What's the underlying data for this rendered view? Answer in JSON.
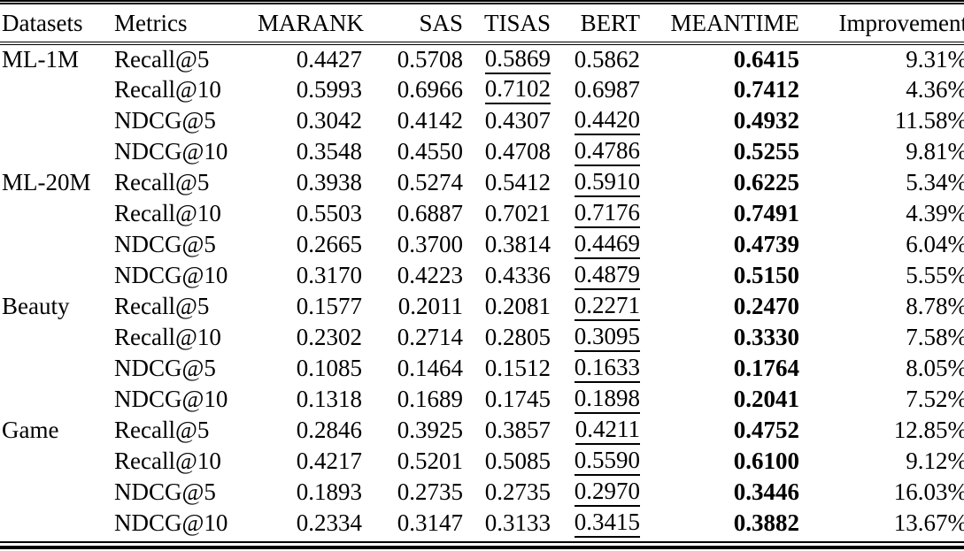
{
  "colors": {
    "text": "#000000",
    "background": "#ffffff",
    "rule": "#000000"
  },
  "table": {
    "columns": [
      "Datasets",
      "Metrics",
      "MARANK",
      "SAS",
      "TISAS",
      "BERT",
      "MEANTIME",
      "Improvement"
    ],
    "value_columns": [
      "MARANK",
      "SAS",
      "TISAS",
      "BERT",
      "MEANTIME",
      "Improvement"
    ],
    "style_legend": {
      "bold": "best result (MEANTIME column)",
      "underline": "second-best result"
    },
    "rows": [
      {
        "dataset": "ML-1M",
        "metric": "Recall@5",
        "values": [
          "0.4427",
          "0.5708",
          "0.5869",
          "0.5862",
          "0.6415",
          "9.31%"
        ],
        "underline": 2,
        "bold": 4
      },
      {
        "dataset": "",
        "metric": "Recall@10",
        "values": [
          "0.5993",
          "0.6966",
          "0.7102",
          "0.6987",
          "0.7412",
          "4.36%"
        ],
        "underline": 2,
        "bold": 4
      },
      {
        "dataset": "",
        "metric": "NDCG@5",
        "values": [
          "0.3042",
          "0.4142",
          "0.4307",
          "0.4420",
          "0.4932",
          "11.58%"
        ],
        "underline": 3,
        "bold": 4
      },
      {
        "dataset": "",
        "metric": "NDCG@10",
        "values": [
          "0.3548",
          "0.4550",
          "0.4708",
          "0.4786",
          "0.5255",
          "9.81%"
        ],
        "underline": 3,
        "bold": 4
      },
      {
        "dataset": "ML-20M",
        "metric": "Recall@5",
        "values": [
          "0.3938",
          "0.5274",
          "0.5412",
          "0.5910",
          "0.6225",
          "5.34%"
        ],
        "underline": 3,
        "bold": 4
      },
      {
        "dataset": "",
        "metric": "Recall@10",
        "values": [
          "0.5503",
          "0.6887",
          "0.7021",
          "0.7176",
          "0.7491",
          "4.39%"
        ],
        "underline": 3,
        "bold": 4
      },
      {
        "dataset": "",
        "metric": "NDCG@5",
        "values": [
          "0.2665",
          "0.3700",
          "0.3814",
          "0.4469",
          "0.4739",
          "6.04%"
        ],
        "underline": 3,
        "bold": 4
      },
      {
        "dataset": "",
        "metric": "NDCG@10",
        "values": [
          "0.3170",
          "0.4223",
          "0.4336",
          "0.4879",
          "0.5150",
          "5.55%"
        ],
        "underline": 3,
        "bold": 4
      },
      {
        "dataset": "Beauty",
        "metric": "Recall@5",
        "values": [
          "0.1577",
          "0.2011",
          "0.2081",
          "0.2271",
          "0.2470",
          "8.78%"
        ],
        "underline": 3,
        "bold": 4
      },
      {
        "dataset": "",
        "metric": "Recall@10",
        "values": [
          "0.2302",
          "0.2714",
          "0.2805",
          "0.3095",
          "0.3330",
          "7.58%"
        ],
        "underline": 3,
        "bold": 4
      },
      {
        "dataset": "",
        "metric": "NDCG@5",
        "values": [
          "0.1085",
          "0.1464",
          "0.1512",
          "0.1633",
          "0.1764",
          "8.05%"
        ],
        "underline": 3,
        "bold": 4
      },
      {
        "dataset": "",
        "metric": "NDCG@10",
        "values": [
          "0.1318",
          "0.1689",
          "0.1745",
          "0.1898",
          "0.2041",
          "7.52%"
        ],
        "underline": 3,
        "bold": 4
      },
      {
        "dataset": "Game",
        "metric": "Recall@5",
        "values": [
          "0.2846",
          "0.3925",
          "0.3857",
          "0.4211",
          "0.4752",
          "12.85%"
        ],
        "underline": 3,
        "bold": 4
      },
      {
        "dataset": "",
        "metric": "Recall@10",
        "values": [
          "0.4217",
          "0.5201",
          "0.5085",
          "0.5590",
          "0.6100",
          "9.12%"
        ],
        "underline": 3,
        "bold": 4
      },
      {
        "dataset": "",
        "metric": "NDCG@5",
        "values": [
          "0.1893",
          "0.2735",
          "0.2735",
          "0.2970",
          "0.3446",
          "16.03%"
        ],
        "underline": 3,
        "bold": 4
      },
      {
        "dataset": "",
        "metric": "NDCG@10",
        "values": [
          "0.2334",
          "0.3147",
          "0.3133",
          "0.3415",
          "0.3882",
          "13.67%"
        ],
        "underline": 3,
        "bold": 4
      }
    ]
  }
}
